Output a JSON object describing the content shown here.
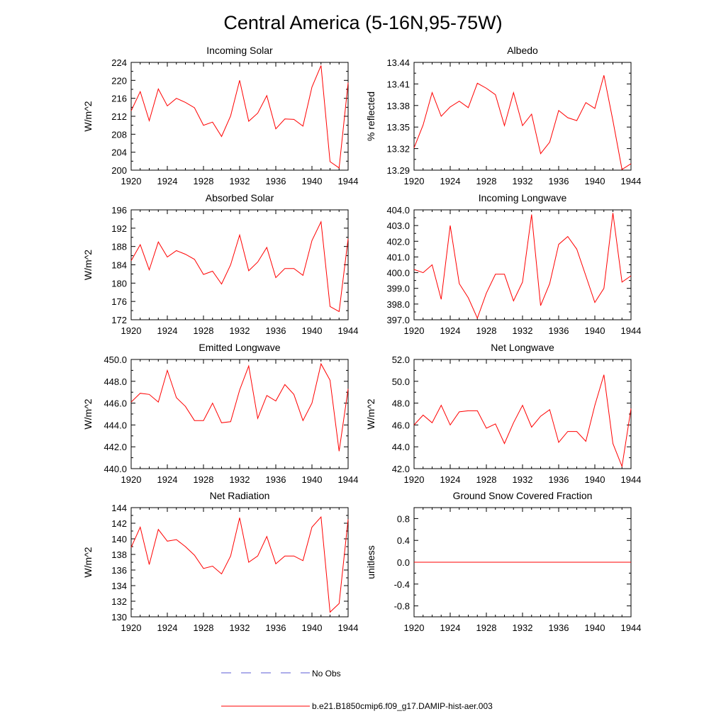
{
  "figure": {
    "title": "Central America (5-16N,95-75W)",
    "legend": [
      {
        "label": "No Obs",
        "style": "dashed",
        "color": "#5b5bd6"
      },
      {
        "label": "b.e21.B1850cmip6.f09_g17.DAMIP-hist-aer.003",
        "style": "solid",
        "color": "#ff0000"
      }
    ]
  },
  "chart_data": [
    {
      "type": "line",
      "title": "Incoming Solar",
      "ylabel": "W/m^2",
      "xlim": [
        1920,
        1944
      ],
      "ylim": [
        200,
        224
      ],
      "xticks": [
        "1920",
        "1924",
        "1928",
        "1932",
        "1936",
        "1940",
        "1944"
      ],
      "yticks": [
        "200",
        "204",
        "208",
        "212",
        "216",
        "220",
        "224"
      ],
      "ytick_values": [
        200,
        204,
        208,
        212,
        216,
        220,
        224
      ],
      "grid": false,
      "series": [
        {
          "color": "#ff0000",
          "x": [
            1920,
            1921,
            1922,
            1923,
            1924,
            1925,
            1926,
            1927,
            1928,
            1929,
            1930,
            1931,
            1932,
            1933,
            1934,
            1935,
            1936,
            1937,
            1938,
            1939,
            1940,
            1941,
            1942,
            1943,
            1944
          ],
          "values": [
            213.2,
            217.5,
            211.0,
            218.1,
            214.3,
            216.0,
            215.1,
            213.9,
            210.0,
            210.7,
            207.5,
            212.1,
            220.0,
            210.9,
            212.7,
            216.6,
            209.2,
            211.4,
            211.3,
            209.8,
            218.5,
            223.3,
            201.9,
            200.5,
            219.5
          ]
        }
      ]
    },
    {
      "type": "line",
      "title": "Albedo",
      "ylabel": "% reflected",
      "xlim": [
        1920,
        1944
      ],
      "ylim": [
        13.29,
        13.44
      ],
      "xticks": [
        "1920",
        "1924",
        "1928",
        "1932",
        "1936",
        "1940",
        "1944"
      ],
      "yticks": [
        "13.29",
        "13.32",
        "13.35",
        "13.38",
        "13.41",
        "13.44"
      ],
      "ytick_values": [
        13.29,
        13.32,
        13.35,
        13.38,
        13.41,
        13.44
      ],
      "grid": false,
      "series": [
        {
          "color": "#ff0000",
          "x": [
            1920,
            1921,
            1922,
            1923,
            1924,
            1925,
            1926,
            1927,
            1928,
            1929,
            1930,
            1931,
            1932,
            1933,
            1934,
            1935,
            1936,
            1937,
            1938,
            1939,
            1940,
            1941,
            1942,
            1943,
            1944
          ],
          "values": [
            13.321,
            13.353,
            13.398,
            13.365,
            13.378,
            13.386,
            13.377,
            13.411,
            13.404,
            13.395,
            13.352,
            13.398,
            13.352,
            13.368,
            13.313,
            13.329,
            13.373,
            13.363,
            13.359,
            13.384,
            13.376,
            13.422,
            13.359,
            13.291,
            13.299
          ]
        }
      ]
    },
    {
      "type": "line",
      "title": "Absorbed Solar",
      "ylabel": "W/m^2",
      "xlim": [
        1920,
        1944
      ],
      "ylim": [
        172,
        196
      ],
      "xticks": [
        "1920",
        "1924",
        "1928",
        "1932",
        "1936",
        "1940",
        "1944"
      ],
      "yticks": [
        "172",
        "176",
        "180",
        "184",
        "188",
        "192",
        "196"
      ],
      "ytick_values": [
        172,
        176,
        180,
        184,
        188,
        192,
        196
      ],
      "grid": false,
      "series": [
        {
          "color": "#ff0000",
          "x": [
            1920,
            1921,
            1922,
            1923,
            1924,
            1925,
            1926,
            1927,
            1928,
            1929,
            1930,
            1931,
            1932,
            1933,
            1934,
            1935,
            1936,
            1937,
            1938,
            1939,
            1940,
            1941,
            1942,
            1943,
            1944
          ],
          "values": [
            184.9,
            188.4,
            182.9,
            189.0,
            185.7,
            187.1,
            186.3,
            185.2,
            181.9,
            182.6,
            179.8,
            184.0,
            190.5,
            182.7,
            184.6,
            187.8,
            181.2,
            183.2,
            183.2,
            181.7,
            189.3,
            193.4,
            174.9,
            173.8,
            189.7
          ]
        }
      ]
    },
    {
      "type": "line",
      "title": "Incoming Longwave",
      "ylabel": "",
      "xlim": [
        1920,
        1944
      ],
      "ylim": [
        397.0,
        404.0
      ],
      "xticks": [
        "1920",
        "1924",
        "1928",
        "1932",
        "1936",
        "1940",
        "1944"
      ],
      "yticks": [
        "397.0",
        "398.0",
        "399.0",
        "400.0",
        "401.0",
        "402.0",
        "403.0",
        "404.0"
      ],
      "ytick_values": [
        397,
        398,
        399,
        400,
        401,
        402,
        403,
        404
      ],
      "grid": false,
      "series": [
        {
          "color": "#ff0000",
          "x": [
            1920,
            1921,
            1922,
            1923,
            1924,
            1925,
            1926,
            1927,
            1928,
            1929,
            1930,
            1931,
            1932,
            1933,
            1934,
            1935,
            1936,
            1937,
            1938,
            1939,
            1940,
            1941,
            1942,
            1943,
            1944
          ],
          "values": [
            400.2,
            400.0,
            400.5,
            398.3,
            403.0,
            399.3,
            398.4,
            397.1,
            398.7,
            399.9,
            399.9,
            398.2,
            399.4,
            403.7,
            397.9,
            399.3,
            401.8,
            402.3,
            401.5,
            399.8,
            398.1,
            399.0,
            403.8,
            399.4,
            399.8
          ]
        }
      ]
    },
    {
      "type": "line",
      "title": "Emitted Longwave",
      "ylabel": "W/m^2",
      "xlim": [
        1920,
        1944
      ],
      "ylim": [
        440.0,
        450.0
      ],
      "xticks": [
        "1920",
        "1924",
        "1928",
        "1932",
        "1936",
        "1940",
        "1944"
      ],
      "yticks": [
        "440.0",
        "442.0",
        "444.0",
        "446.0",
        "448.0",
        "450.0"
      ],
      "ytick_values": [
        440,
        442,
        444,
        446,
        448,
        450
      ],
      "grid": false,
      "series": [
        {
          "color": "#ff0000",
          "x": [
            1920,
            1921,
            1922,
            1923,
            1924,
            1925,
            1926,
            1927,
            1928,
            1929,
            1930,
            1931,
            1932,
            1933,
            1934,
            1935,
            1936,
            1937,
            1938,
            1939,
            1940,
            1941,
            1942,
            1943,
            1944
          ],
          "values": [
            446.1,
            446.9,
            446.8,
            446.1,
            449.0,
            446.5,
            445.7,
            444.4,
            444.4,
            446.0,
            444.2,
            444.3,
            447.2,
            449.4,
            444.6,
            446.7,
            446.2,
            447.7,
            446.8,
            444.4,
            446.0,
            449.6,
            448.1,
            441.6,
            447.3
          ]
        }
      ]
    },
    {
      "type": "line",
      "title": "Net Longwave",
      "ylabel": "W/m^2",
      "xlim": [
        1920,
        1944
      ],
      "ylim": [
        42.0,
        52.0
      ],
      "xticks": [
        "1920",
        "1924",
        "1928",
        "1932",
        "1936",
        "1940",
        "1944"
      ],
      "yticks": [
        "42.0",
        "44.0",
        "46.0",
        "48.0",
        "50.0",
        "52.0"
      ],
      "ytick_values": [
        42,
        44,
        46,
        48,
        50,
        52
      ],
      "grid": false,
      "series": [
        {
          "color": "#ff0000",
          "x": [
            1920,
            1921,
            1922,
            1923,
            1924,
            1925,
            1926,
            1927,
            1928,
            1929,
            1930,
            1931,
            1932,
            1933,
            1934,
            1935,
            1936,
            1937,
            1938,
            1939,
            1940,
            1941,
            1942,
            1943,
            1944
          ],
          "values": [
            46.0,
            46.9,
            46.2,
            47.8,
            46.0,
            47.2,
            47.3,
            47.3,
            45.7,
            46.1,
            44.3,
            46.2,
            47.8,
            45.8,
            46.8,
            47.4,
            44.4,
            45.4,
            45.4,
            44.5,
            47.8,
            50.6,
            44.3,
            42.2,
            47.5
          ]
        }
      ]
    },
    {
      "type": "line",
      "title": "Net Radiation",
      "ylabel": "W/m^2",
      "xlim": [
        1920,
        1944
      ],
      "ylim": [
        130,
        144
      ],
      "xticks": [
        "1920",
        "1924",
        "1928",
        "1932",
        "1936",
        "1940",
        "1944"
      ],
      "yticks": [
        "130",
        "132",
        "134",
        "136",
        "138",
        "140",
        "142",
        "144"
      ],
      "ytick_values": [
        130,
        132,
        134,
        136,
        138,
        140,
        142,
        144
      ],
      "grid": false,
      "series": [
        {
          "color": "#ff0000",
          "x": [
            1920,
            1921,
            1922,
            1923,
            1924,
            1925,
            1926,
            1927,
            1928,
            1929,
            1930,
            1931,
            1932,
            1933,
            1934,
            1935,
            1936,
            1937,
            1938,
            1939,
            1940,
            1941,
            1942,
            1943,
            1944
          ],
          "values": [
            138.9,
            141.5,
            136.7,
            141.2,
            139.7,
            139.9,
            139.0,
            137.9,
            136.2,
            136.5,
            135.5,
            137.8,
            142.7,
            137.0,
            137.8,
            140.3,
            136.8,
            137.8,
            137.8,
            137.2,
            141.5,
            142.8,
            130.6,
            131.7,
            142.5
          ]
        }
      ]
    },
    {
      "type": "line",
      "title": "Ground Snow Covered Fraction",
      "ylabel": "unitless",
      "xlim": [
        1920,
        1944
      ],
      "ylim": [
        -1.0,
        1.0
      ],
      "xticks": [
        "1920",
        "1924",
        "1928",
        "1932",
        "1936",
        "1940",
        "1944"
      ],
      "yticks": [
        "-0.8",
        "-0.4",
        "0.0",
        "0.4",
        "0.8"
      ],
      "ytick_values": [
        -0.8,
        -0.4,
        0.0,
        0.4,
        0.8
      ],
      "grid": false,
      "series": [
        {
          "color": "#ff0000",
          "x": [
            1920,
            1921,
            1922,
            1923,
            1924,
            1925,
            1926,
            1927,
            1928,
            1929,
            1930,
            1931,
            1932,
            1933,
            1934,
            1935,
            1936,
            1937,
            1938,
            1939,
            1940,
            1941,
            1942,
            1943,
            1944
          ],
          "values": [
            0,
            0,
            0,
            0,
            0,
            0,
            0,
            0,
            0,
            0,
            0,
            0,
            0,
            0,
            0,
            0,
            0,
            0,
            0,
            0,
            0,
            0,
            0,
            0,
            0
          ]
        }
      ]
    }
  ]
}
